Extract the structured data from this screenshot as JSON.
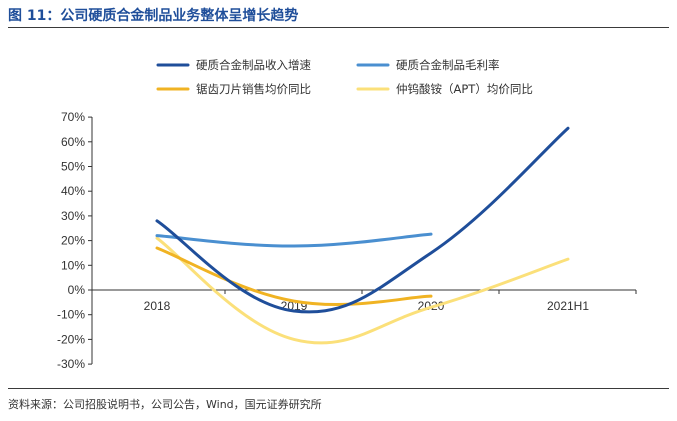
{
  "header": {
    "title": "图 11：公司硬质合金制品业务整体呈增长趋势"
  },
  "footer": {
    "source": "资料来源：公司招股说明书，公司公告，Wind，国元证券研究所"
  },
  "chart_data": {
    "type": "line",
    "title": "",
    "xlabel": "",
    "ylabel": "",
    "categories": [
      "2018",
      "2019",
      "2020",
      "2021H1"
    ],
    "ylim": [
      -0.3,
      0.7
    ],
    "yticks": [
      "70%",
      "60%",
      "50%",
      "40%",
      "30%",
      "20%",
      "10%",
      "0%",
      "-10%",
      "-20%",
      "-30%"
    ],
    "series": [
      {
        "name": "硬质合金制品收入增速",
        "color": "#1f4e9a",
        "values": [
          0.28,
          -0.085,
          0.15,
          0.655
        ]
      },
      {
        "name": "硬质合金制品毛利率",
        "color": "#4a8fd0",
        "values": [
          0.22,
          0.178,
          0.226,
          null
        ]
      },
      {
        "name": "锯齿刀片销售均价同比",
        "color": "#f0b323",
        "values": [
          0.17,
          -0.045,
          -0.025,
          null
        ]
      },
      {
        "name": "仲钨酸铵（APT）均价同比",
        "color": "#fbe07a",
        "values": [
          0.21,
          -0.2,
          -0.07,
          0.125
        ]
      }
    ],
    "legend_position": "top"
  }
}
